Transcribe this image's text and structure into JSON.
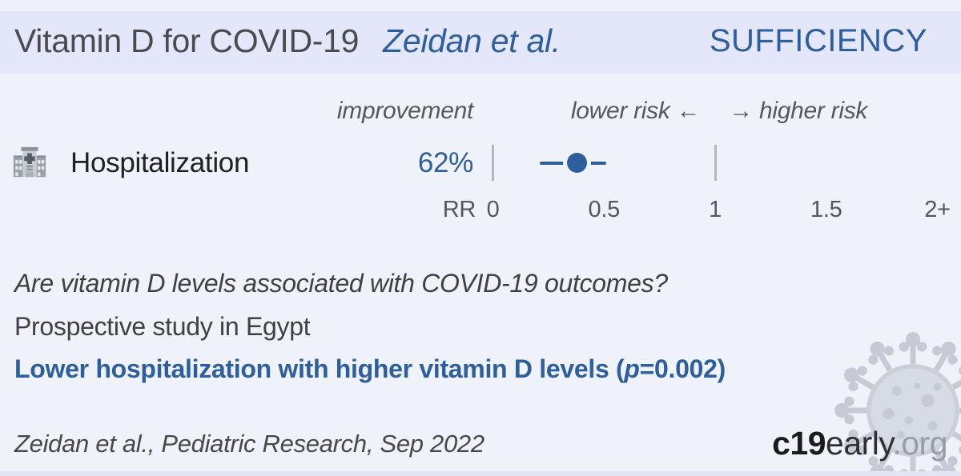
{
  "header": {
    "title": "Vitamin D for COVID-19",
    "study": "Zeidan et al.",
    "badge": "SUFFICIENCY"
  },
  "chart_data": {
    "type": "forest",
    "column_header": "improvement",
    "direction_left": "lower risk ←",
    "direction_right": "→ higher risk",
    "rows": [
      {
        "icon": "hospital",
        "outcome": "Hospitalization",
        "improvement": "62%",
        "rr": 0.38,
        "ci_lower": 0.21,
        "ci_upper": 0.51
      }
    ],
    "axis": {
      "label": "RR",
      "min": 0,
      "max": 2.05,
      "ticks": [
        {
          "label": "0",
          "value": 0
        },
        {
          "label": "0.5",
          "value": 0.5
        },
        {
          "label": "1",
          "value": 1
        },
        {
          "label": "1.5",
          "value": 1.5
        },
        {
          "label": "2+",
          "value": 2
        }
      ],
      "gridlines": [
        0,
        1
      ]
    }
  },
  "body": {
    "question": "Are vitamin D levels associated with COVID-19 outcomes?",
    "study_type": "Prospective study in Egypt",
    "finding_main": "Lower hospitalization with higher vitamin D levels (",
    "finding_p": "p",
    "finding_p_rest": "=0.002)"
  },
  "footer": {
    "citation": "Zeidan et al., Pediatric Research, Sep 2022",
    "logo_c19": "c19",
    "logo_early": "early",
    "logo_org": ".org"
  },
  "colors": {
    "accent_blue": "#2d5e9d",
    "background": "#f0f2fa",
    "header_background": "#e3e7f9",
    "top_strip": "#eef0fb",
    "gridline_gray": "#b1b5c0"
  }
}
